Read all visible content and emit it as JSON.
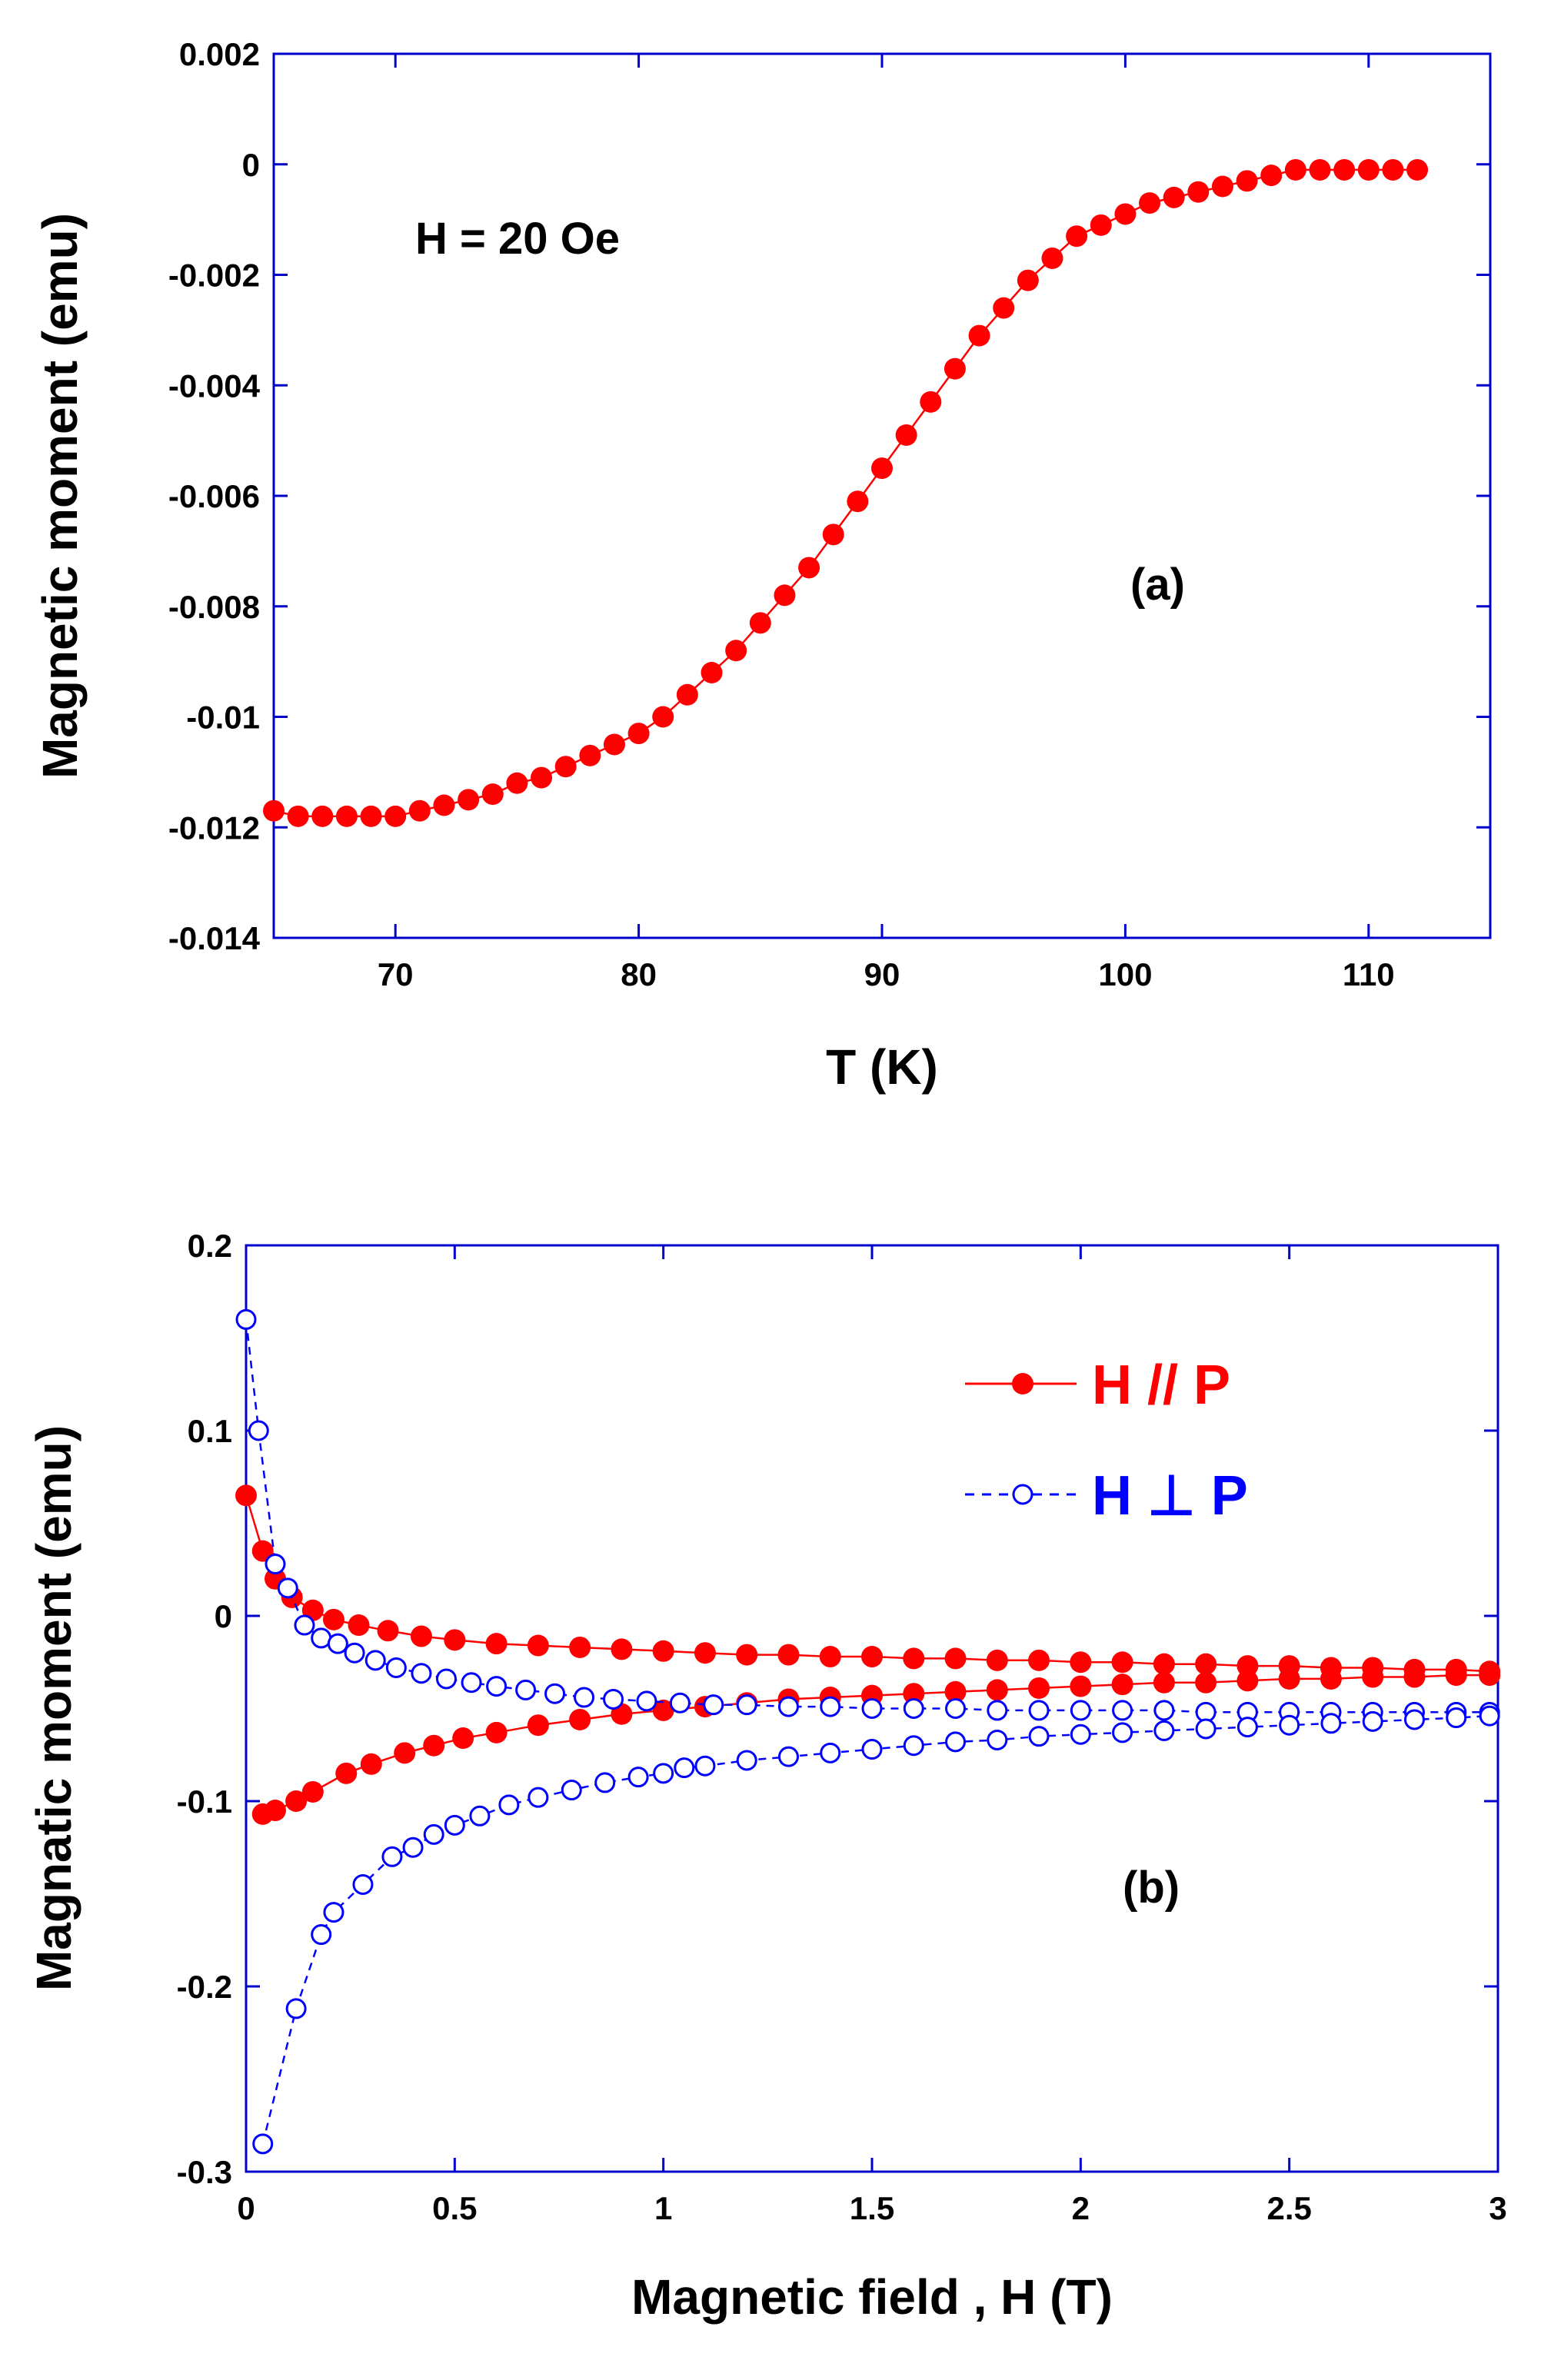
{
  "chart_data": [
    {
      "panel": "(a)",
      "type": "scatter",
      "xlabel": "T (K)",
      "ylabel": "Magnetic moment  (emu)",
      "annotation": "H = 20 Oe",
      "xlim": [
        65,
        115
      ],
      "ylim": [
        -0.014,
        0.002
      ],
      "xticks": [
        70,
        80,
        90,
        100,
        110
      ],
      "yticks": [
        0.002,
        0,
        -0.002,
        -0.004,
        -0.006,
        -0.008,
        -0.01,
        -0.012,
        -0.014
      ],
      "xtick_labels": [
        "70",
        "80",
        "90",
        "100",
        "110"
      ],
      "ytick_labels": [
        "0.002",
        "0",
        "-0.002",
        "-0.004",
        "-0.006",
        "-0.008",
        "-0.01",
        "-0.012",
        "-0.014"
      ],
      "grid": false,
      "series": [
        {
          "color": "#ff0000",
          "marker": "filled-circle",
          "line": "solid",
          "x": [
            65,
            66,
            67,
            68,
            69,
            70,
            71,
            72,
            73,
            74,
            75,
            76,
            77,
            78,
            79,
            80,
            81,
            82,
            83,
            84,
            85,
            86,
            87,
            88,
            89,
            90,
            91,
            92,
            93,
            94,
            95,
            96,
            97,
            98,
            99,
            100,
            101,
            102,
            103,
            104,
            105,
            106,
            107,
            108,
            109,
            110,
            111,
            112
          ],
          "y": [
            -0.0117,
            -0.0118,
            -0.0118,
            -0.0118,
            -0.0118,
            -0.0118,
            -0.0117,
            -0.0116,
            -0.0115,
            -0.0114,
            -0.0112,
            -0.0111,
            -0.0109,
            -0.0107,
            -0.0105,
            -0.0103,
            -0.01,
            -0.0096,
            -0.0092,
            -0.0088,
            -0.0083,
            -0.0078,
            -0.0073,
            -0.0067,
            -0.0061,
            -0.0055,
            -0.0049,
            -0.0043,
            -0.0037,
            -0.0031,
            -0.0026,
            -0.0021,
            -0.0017,
            -0.0013,
            -0.0011,
            -0.0009,
            -0.0007,
            -0.0006,
            -0.0005,
            -0.0004,
            -0.0003,
            -0.0002,
            -0.0001,
            -0.0001,
            -0.0001,
            -0.0001,
            -0.0001,
            -0.0001
          ]
        }
      ]
    },
    {
      "panel": "(b)",
      "type": "scatter",
      "xlabel": "Magnetic field , H (T)",
      "ylabel": "Magnatic moment (emu)",
      "xlim": [
        0,
        3
      ],
      "ylim": [
        -0.3,
        0.2
      ],
      "xticks": [
        0,
        0.5,
        1,
        1.5,
        2,
        2.5,
        3
      ],
      "yticks": [
        0.2,
        0.1,
        0,
        -0.1,
        -0.2,
        -0.3
      ],
      "xtick_labels": [
        "0",
        "0.5",
        "1",
        "1.5",
        "2",
        "2.5",
        "3"
      ],
      "ytick_labels": [
        "0.2",
        "0.1",
        "0",
        "-0.1",
        "-0.2",
        "-0.3"
      ],
      "grid": false,
      "legend_position": "top-right",
      "series": [
        {
          "name": "H // P",
          "color": "#ff0000",
          "marker": "filled-circle",
          "line": "solid",
          "segments": [
            {
              "x": [
                0.0,
                0.04,
                0.07,
                0.11,
                0.16,
                0.21,
                0.27,
                0.34,
                0.42,
                0.5,
                0.6,
                0.7,
                0.8,
                0.9,
                1.0,
                1.1,
                1.2,
                1.3,
                1.4,
                1.5,
                1.6,
                1.7,
                1.8,
                1.9,
                2.0,
                2.1,
                2.2,
                2.3,
                2.4,
                2.5,
                2.6,
                2.7,
                2.8,
                2.9,
                2.98
              ],
              "y": [
                0.065,
                0.035,
                0.02,
                0.01,
                0.003,
                -0.002,
                -0.005,
                -0.008,
                -0.011,
                -0.013,
                -0.015,
                -0.016,
                -0.017,
                -0.018,
                -0.019,
                -0.02,
                -0.021,
                -0.021,
                -0.022,
                -0.022,
                -0.023,
                -0.023,
                -0.024,
                -0.024,
                -0.025,
                -0.025,
                -0.026,
                -0.026,
                -0.027,
                -0.027,
                -0.028,
                -0.028,
                -0.029,
                -0.029,
                -0.03
              ]
            },
            {
              "x": [
                0.04,
                0.07,
                0.12,
                0.16,
                0.24,
                0.3,
                0.38,
                0.45,
                0.52,
                0.6,
                0.7,
                0.8,
                0.9,
                1.0,
                1.1,
                1.2,
                1.3,
                1.4,
                1.5,
                1.6,
                1.7,
                1.8,
                1.9,
                2.0,
                2.1,
                2.2,
                2.3,
                2.4,
                2.5,
                2.6,
                2.7,
                2.8,
                2.9,
                2.98
              ],
              "y": [
                -0.107,
                -0.105,
                -0.1,
                -0.095,
                -0.085,
                -0.08,
                -0.074,
                -0.07,
                -0.066,
                -0.063,
                -0.059,
                -0.056,
                -0.053,
                -0.051,
                -0.049,
                -0.047,
                -0.045,
                -0.044,
                -0.043,
                -0.042,
                -0.041,
                -0.04,
                -0.039,
                -0.038,
                -0.037,
                -0.036,
                -0.036,
                -0.035,
                -0.034,
                -0.034,
                -0.033,
                -0.033,
                -0.032,
                -0.032
              ]
            }
          ]
        },
        {
          "name": "H ⊥ P",
          "color": "#0000ff",
          "marker": "open-circle",
          "line": "dashed",
          "segments": [
            {
              "x": [
                0.0,
                0.03,
                0.07,
                0.1,
                0.14,
                0.18,
                0.22,
                0.26,
                0.31,
                0.36,
                0.42,
                0.48,
                0.54,
                0.6,
                0.67,
                0.74,
                0.81,
                0.88,
                0.96,
                1.04,
                1.12,
                1.2,
                1.3,
                1.4,
                1.5,
                1.6,
                1.7,
                1.8,
                1.9,
                2.0,
                2.1,
                2.2,
                2.3,
                2.4,
                2.5,
                2.6,
                2.7,
                2.8,
                2.9,
                2.98
              ],
              "y": [
                0.16,
                0.1,
                0.028,
                0.015,
                -0.005,
                -0.012,
                -0.015,
                -0.02,
                -0.024,
                -0.028,
                -0.031,
                -0.034,
                -0.036,
                -0.038,
                -0.04,
                -0.042,
                -0.044,
                -0.045,
                -0.046,
                -0.047,
                -0.048,
                -0.048,
                -0.049,
                -0.049,
                -0.05,
                -0.05,
                -0.05,
                -0.051,
                -0.051,
                -0.051,
                -0.051,
                -0.051,
                -0.052,
                -0.052,
                -0.052,
                -0.052,
                -0.052,
                -0.052,
                -0.052,
                -0.052
              ]
            },
            {
              "x": [
                0.04,
                0.12,
                0.18,
                0.21,
                0.28,
                0.35,
                0.4,
                0.45,
                0.5,
                0.56,
                0.63,
                0.7,
                0.78,
                0.86,
                0.94,
                1.0,
                1.05,
                1.1,
                1.2,
                1.3,
                1.4,
                1.5,
                1.6,
                1.7,
                1.8,
                1.9,
                2.0,
                2.1,
                2.2,
                2.3,
                2.4,
                2.5,
                2.6,
                2.7,
                2.8,
                2.9,
                2.98
              ],
              "y": [
                -0.285,
                -0.212,
                -0.172,
                -0.16,
                -0.145,
                -0.13,
                -0.125,
                -0.118,
                -0.113,
                -0.108,
                -0.102,
                -0.098,
                -0.094,
                -0.09,
                -0.087,
                -0.085,
                -0.082,
                -0.081,
                -0.078,
                -0.076,
                -0.074,
                -0.072,
                -0.07,
                -0.068,
                -0.067,
                -0.065,
                -0.064,
                -0.063,
                -0.062,
                -0.061,
                -0.06,
                -0.059,
                -0.058,
                -0.057,
                -0.056,
                -0.055,
                -0.054
              ]
            }
          ]
        }
      ]
    }
  ]
}
